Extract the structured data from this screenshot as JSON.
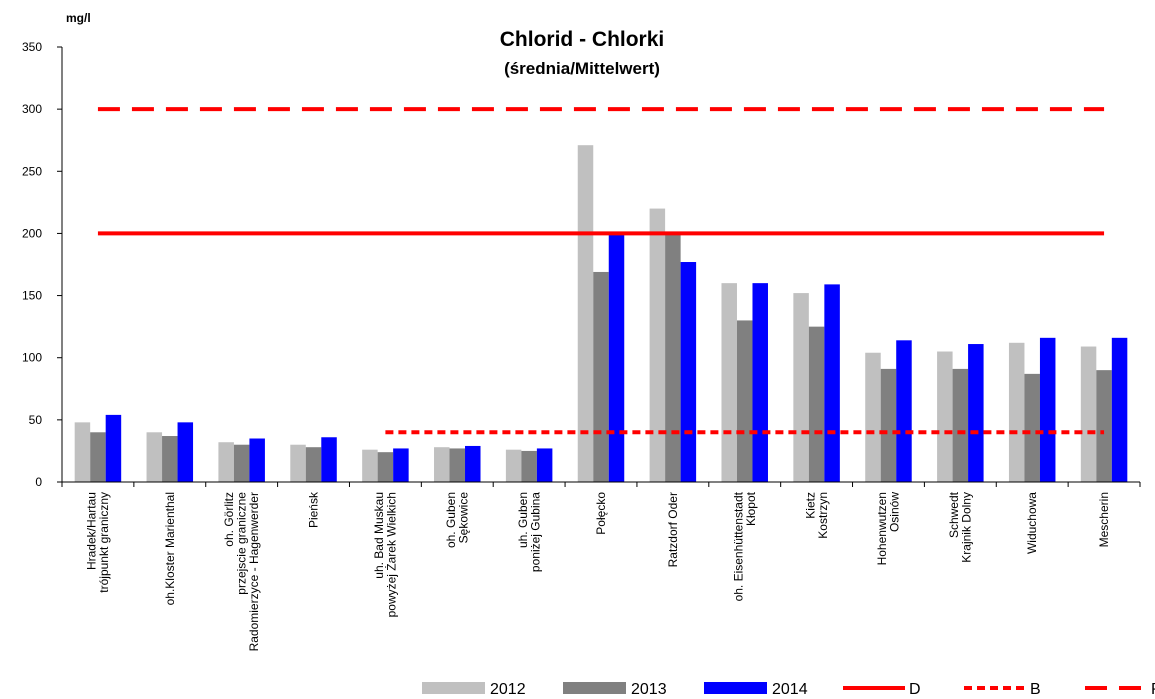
{
  "chart_data": {
    "type": "bar",
    "title": "Chlorid  - Chlorki",
    "subtitle": "(średnia/Mittelwert)",
    "y_axis_label": "mg/l",
    "categories": [
      [
        "Hradek/Hartau",
        "trójpunkt graniczny"
      ],
      [
        "oh.Kloster Marienthal"
      ],
      [
        "oh. Görlitz",
        "przejscie graniczne",
        "Radomierzyce - Hagenwerder"
      ],
      [
        "Pieńsk"
      ],
      [
        "uh. Bad Muskau",
        "powyżej Żarek Wielkich"
      ],
      [
        "oh. Guben",
        "Sękowice"
      ],
      [
        "uh. Guben",
        "poniżej Gubina"
      ],
      [
        "Połęcko"
      ],
      [
        "Ratzdorf Oder"
      ],
      [
        "oh. Eisenhüttenstadt",
        "Kłopot"
      ],
      [
        "Kietz",
        "Kostrzyn"
      ],
      [
        "Hohenwutzen",
        "Osinów"
      ],
      [
        "Schwedt",
        "Krajnik Dolny"
      ],
      [
        "Widuchowa"
      ],
      [
        "Mescherin"
      ]
    ],
    "series": [
      {
        "name": "2012",
        "color": "#c0c0c0",
        "values": [
          48,
          40,
          32,
          30,
          26,
          28,
          26,
          271,
          220,
          160,
          152,
          104,
          105,
          112,
          109
        ]
      },
      {
        "name": "2013",
        "color": "#808080",
        "values": [
          40,
          37,
          30,
          28,
          24,
          27,
          25,
          169,
          200,
          130,
          125,
          91,
          91,
          87,
          90
        ]
      },
      {
        "name": "2014",
        "color": "#0000ff",
        "values": [
          54,
          48,
          35,
          36,
          27,
          29,
          27,
          200,
          177,
          160,
          159,
          114,
          111,
          116,
          116
        ]
      }
    ],
    "lines": [
      {
        "name": "D",
        "color": "#ff0000",
        "style": "solid",
        "values": [
          200,
          200,
          200,
          200,
          200,
          200,
          200,
          200,
          200,
          200,
          200,
          200,
          200,
          200,
          200
        ]
      },
      {
        "name": "B",
        "color": "#ff0000",
        "style": "dotted",
        "values": [
          null,
          null,
          null,
          null,
          40,
          40,
          40,
          40,
          40,
          40,
          40,
          40,
          40,
          40,
          40
        ]
      },
      {
        "name": "P",
        "color": "#ff0000",
        "style": "dashed",
        "values": [
          300,
          300,
          300,
          300,
          300,
          300,
          300,
          300,
          300,
          300,
          300,
          300,
          300,
          300,
          300
        ]
      }
    ],
    "ylim": [
      0,
      350
    ],
    "yticks": [
      0,
      50,
      100,
      150,
      200,
      250,
      300,
      350
    ],
    "grid": false
  }
}
